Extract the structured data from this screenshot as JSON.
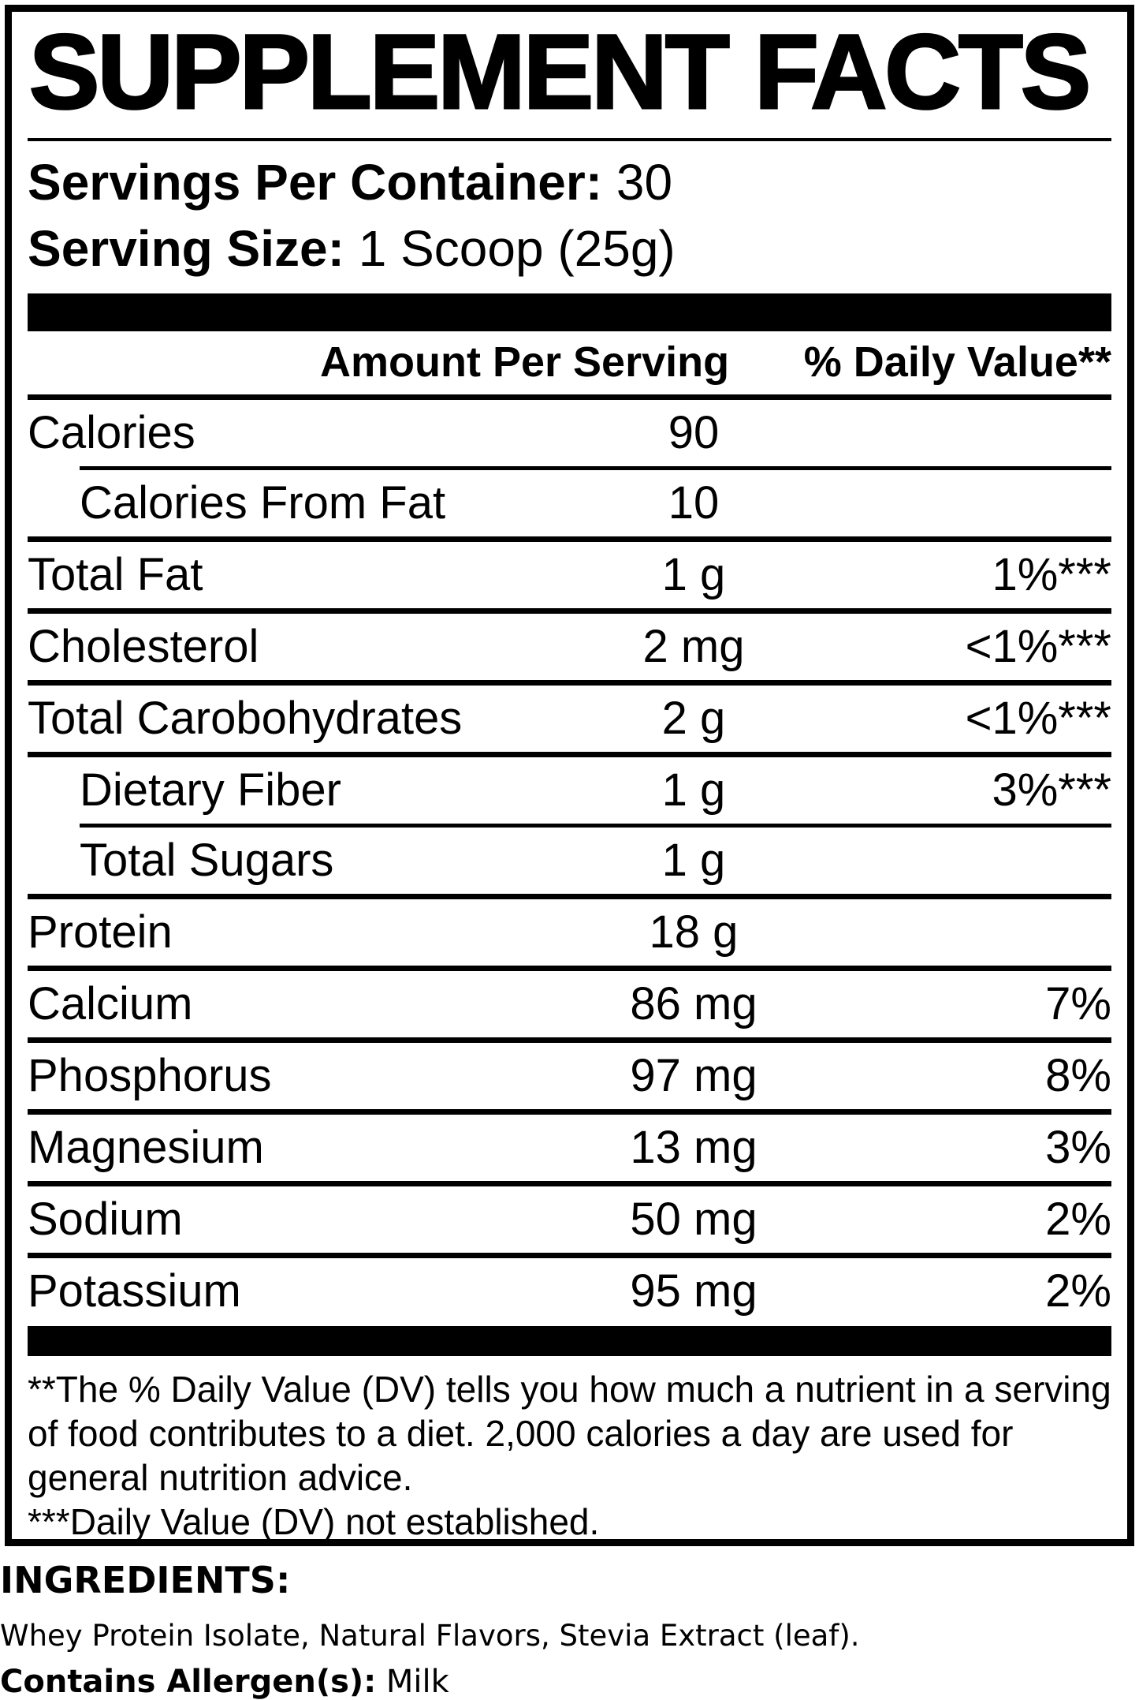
{
  "colors": {
    "ink": "#000000",
    "paper": "#ffffff"
  },
  "panel": {
    "title": "SUPPLEMENT FACTS",
    "serving_info": {
      "servings_per_container": {
        "label": "Servings Per Container:",
        "value": "30"
      },
      "serving_size": {
        "label": "Serving Size:",
        "value": "1 Scoop (25g)"
      }
    },
    "table": {
      "header": {
        "amount": "Amount Per Serving",
        "daily_value": "% Daily Value**"
      },
      "rows": [
        {
          "label": "Calories",
          "amount": "90",
          "dv": "",
          "indent": false,
          "divider": "none"
        },
        {
          "label": "Calories From Fat",
          "amount": "10",
          "dv": "",
          "indent": true,
          "divider": "indent"
        },
        {
          "label": "Total Fat",
          "amount": "1 g",
          "dv": "1%***",
          "indent": false,
          "divider": "full"
        },
        {
          "label": "Cholesterol",
          "amount": "2 mg",
          "dv": "<1%***",
          "indent": false,
          "divider": "full"
        },
        {
          "label": "Total Carobohydrates",
          "amount": "2 g",
          "dv": "<1%***",
          "indent": false,
          "divider": "full"
        },
        {
          "label": "Dietary Fiber",
          "amount": "1 g",
          "dv": "3%***",
          "indent": true,
          "divider": "full"
        },
        {
          "label": "Total Sugars",
          "amount": "1 g",
          "dv": "",
          "indent": true,
          "divider": "indent"
        },
        {
          "label": "Protein",
          "amount": "18 g",
          "dv": "",
          "indent": false,
          "divider": "full"
        },
        {
          "label": "Calcium",
          "amount": "86 mg",
          "dv": "7%",
          "indent": false,
          "divider": "full"
        },
        {
          "label": "Phosphorus",
          "amount": "97 mg",
          "dv": "8%",
          "indent": false,
          "divider": "full"
        },
        {
          "label": "Magnesium",
          "amount": "13 mg",
          "dv": "3%",
          "indent": false,
          "divider": "full"
        },
        {
          "label": "Sodium",
          "amount": "50 mg",
          "dv": "2%",
          "indent": false,
          "divider": "full"
        },
        {
          "label": "Potassium",
          "amount": "95 mg",
          "dv": "2%",
          "indent": false,
          "divider": "full"
        }
      ]
    },
    "footnotes": {
      "daily_value_note": "**The % Daily Value (DV) tells you how much a nutrient in a serving of food contributes to a diet. 2,000 calories a day are used for general nutrition advice.",
      "dv_not_established": "***Daily Value (DV) not established."
    }
  },
  "ingredients_section": {
    "heading": "INGREDIENTS:",
    "ingredients": "Whey Protein Isolate, Natural Flavors, Stevia Extract (leaf).",
    "allergen": {
      "label": "Contains Allergen(s):",
      "value": "Milk"
    }
  }
}
